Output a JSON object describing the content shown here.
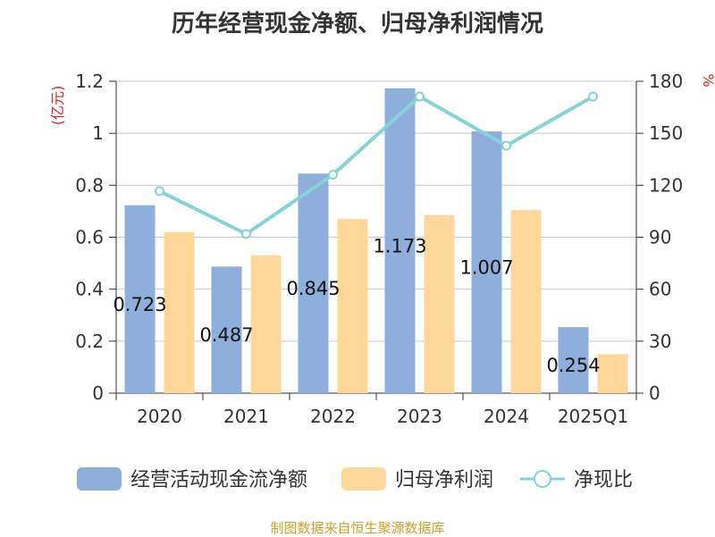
{
  "title": "历年经营现金净额、归母净利润情况",
  "source": "制图数据来自恒生聚源数据库",
  "chart_data": {
    "type": "bar",
    "categories": [
      "2020",
      "2021",
      "2022",
      "2023",
      "2024",
      "2025Q1"
    ],
    "series": [
      {
        "name": "经营活动现金流净额",
        "kind": "bar",
        "axis": "left",
        "color": "#8eaedb",
        "values": [
          0.723,
          0.487,
          0.845,
          1.173,
          1.007,
          0.254
        ],
        "labels": [
          "0.723",
          "0.487",
          "0.845",
          "1.173",
          "1.007",
          "0.254"
        ]
      },
      {
        "name": "归母净利润",
        "kind": "bar",
        "axis": "left",
        "color": "#ffd899",
        "values": [
          0.62,
          0.53,
          0.67,
          0.685,
          0.705,
          0.15
        ]
      },
      {
        "name": "净现比",
        "kind": "line",
        "axis": "right",
        "color": "#86d3d6",
        "values": [
          116.6,
          91.9,
          126.1,
          171.2,
          142.8,
          171.2
        ]
      }
    ],
    "y_left": {
      "label": "(亿元)",
      "min": 0,
      "max": 1.2,
      "ticks": [
        "0",
        "0.2",
        "0.4",
        "0.6",
        "0.8",
        "1",
        "1.2"
      ]
    },
    "y_right": {
      "label": "%",
      "min": 0,
      "max": 180,
      "ticks": [
        "0",
        "30",
        "60",
        "90",
        "120",
        "150",
        "180"
      ]
    },
    "grid": true,
    "legend": "bottom"
  }
}
